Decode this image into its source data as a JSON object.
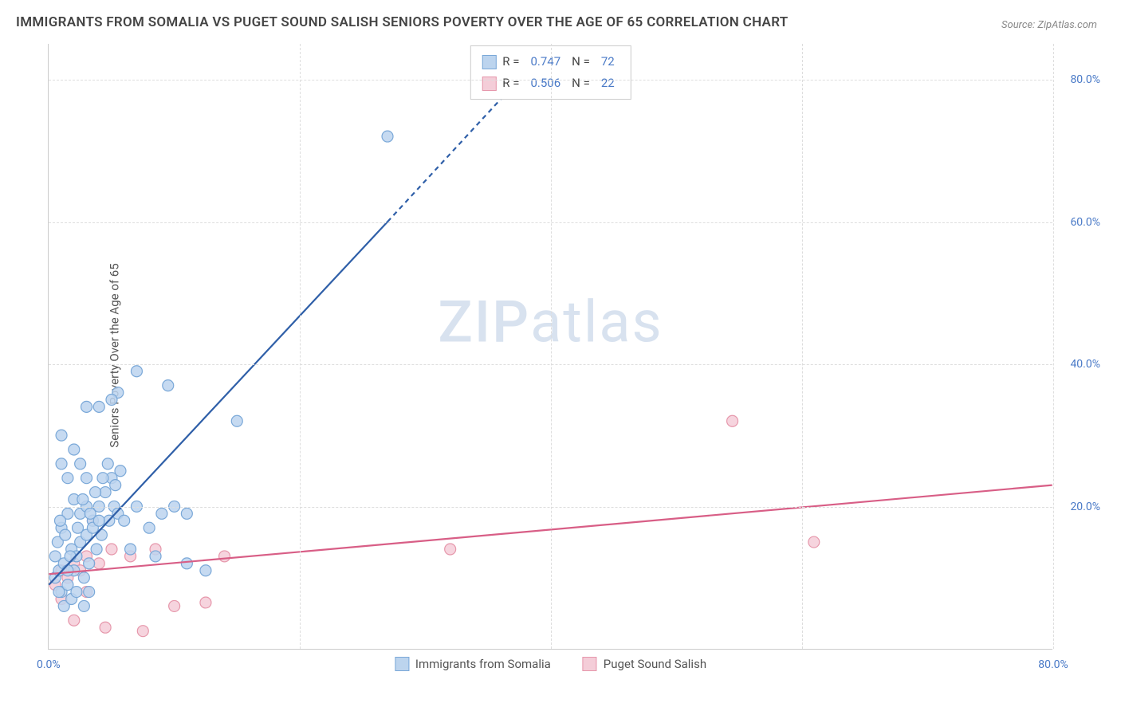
{
  "title": "IMMIGRANTS FROM SOMALIA VS PUGET SOUND SALISH SENIORS POVERTY OVER THE AGE OF 65 CORRELATION CHART",
  "source": "Source: ZipAtlas.com",
  "y_axis_label": "Seniors Poverty Over the Age of 65",
  "watermark": "ZIPatlas",
  "chart": {
    "type": "scatter",
    "xlim": [
      0,
      80
    ],
    "ylim": [
      0,
      85
    ],
    "x_ticks": [
      0,
      80
    ],
    "x_tick_labels": [
      "0.0%",
      "80.0%"
    ],
    "y_ticks": [
      20,
      40,
      60,
      80
    ],
    "y_tick_labels": [
      "20.0%",
      "40.0%",
      "60.0%",
      "80.0%"
    ],
    "grid_color": "#dddddd",
    "background_color": "#ffffff",
    "marker_radius": 7,
    "marker_stroke_width": 1.2,
    "trend_line_width": 2.2,
    "series": [
      {
        "name": "Immigrants from Somalia",
        "fill": "#bcd4ee",
        "stroke": "#7aa8d8",
        "line_color": "#2f5fa8",
        "r_value": "0.747",
        "n_value": "72",
        "trend": {
          "x1": 0,
          "y1": 9,
          "x2": 27,
          "y2": 60,
          "dash_x2": 38,
          "dash_y2": 81
        },
        "points": [
          [
            0.5,
            10
          ],
          [
            0.8,
            11
          ],
          [
            1.0,
            8
          ],
          [
            1.2,
            12
          ],
          [
            1.5,
            9
          ],
          [
            1.8,
            14
          ],
          [
            2.0,
            11
          ],
          [
            2.2,
            13
          ],
          [
            2.5,
            15
          ],
          [
            2.8,
            10
          ],
          [
            3.0,
            16
          ],
          [
            3.2,
            12
          ],
          [
            3.5,
            18
          ],
          [
            3.8,
            14
          ],
          [
            4.0,
            20
          ],
          [
            4.2,
            16
          ],
          [
            4.5,
            22
          ],
          [
            4.8,
            18
          ],
          [
            5.0,
            24
          ],
          [
            5.2,
            20
          ],
          [
            1.0,
            17
          ],
          [
            1.5,
            19
          ],
          [
            2.0,
            21
          ],
          [
            2.5,
            19
          ],
          [
            3.0,
            20
          ],
          [
            3.5,
            17
          ],
          [
            4.0,
            18
          ],
          [
            1.0,
            26
          ],
          [
            1.5,
            24
          ],
          [
            2.5,
            26
          ],
          [
            3.0,
            24
          ],
          [
            0.5,
            13
          ],
          [
            0.8,
            8
          ],
          [
            1.2,
            6
          ],
          [
            1.8,
            7
          ],
          [
            2.2,
            8
          ],
          [
            2.8,
            6
          ],
          [
            3.2,
            8
          ],
          [
            1.0,
            30
          ],
          [
            2.0,
            28
          ],
          [
            5.5,
            19
          ],
          [
            6.0,
            18
          ],
          [
            7.0,
            20
          ],
          [
            8.0,
            17
          ],
          [
            9.0,
            19
          ],
          [
            10.0,
            20
          ],
          [
            11.0,
            19
          ],
          [
            4.0,
            34
          ],
          [
            5.5,
            36
          ],
          [
            7.0,
            39
          ],
          [
            9.5,
            37
          ],
          [
            3.0,
            34
          ],
          [
            5.0,
            35
          ],
          [
            15.0,
            32
          ],
          [
            11.0,
            12
          ],
          [
            8.5,
            13
          ],
          [
            6.5,
            14
          ],
          [
            12.5,
            11
          ],
          [
            27.0,
            72
          ],
          [
            1.5,
            11
          ],
          [
            0.7,
            15
          ],
          [
            0.9,
            18
          ],
          [
            1.3,
            16
          ],
          [
            1.7,
            13
          ],
          [
            2.3,
            17
          ],
          [
            2.7,
            21
          ],
          [
            3.3,
            19
          ],
          [
            3.7,
            22
          ],
          [
            4.3,
            24
          ],
          [
            4.7,
            26
          ],
          [
            5.3,
            23
          ],
          [
            5.7,
            25
          ]
        ]
      },
      {
        "name": "Puget Sound Salish",
        "fill": "#f4cdd8",
        "stroke": "#e697ab",
        "line_color": "#d85e86",
        "r_value": "0.506",
        "n_value": "22",
        "trend": {
          "x1": 0,
          "y1": 10.5,
          "x2": 80,
          "y2": 23
        },
        "points": [
          [
            0.5,
            9
          ],
          [
            1.0,
            11
          ],
          [
            1.5,
            10
          ],
          [
            2.0,
            12
          ],
          [
            2.5,
            11
          ],
          [
            3.0,
            13
          ],
          [
            3.5,
            18
          ],
          [
            4.0,
            12
          ],
          [
            5.0,
            14
          ],
          [
            6.5,
            13
          ],
          [
            8.5,
            14
          ],
          [
            14.0,
            13
          ],
          [
            32.0,
            14
          ],
          [
            2.0,
            4
          ],
          [
            4.5,
            3
          ],
          [
            7.5,
            2.5
          ],
          [
            10.0,
            6
          ],
          [
            12.5,
            6.5
          ],
          [
            1.0,
            7
          ],
          [
            3.0,
            8
          ],
          [
            54.5,
            32
          ],
          [
            61.0,
            15
          ]
        ]
      }
    ]
  },
  "legend_bottom": {
    "items": [
      {
        "label": "Immigrants from Somalia",
        "fill": "#bcd4ee",
        "stroke": "#7aa8d8"
      },
      {
        "label": "Puget Sound Salish",
        "fill": "#f4cdd8",
        "stroke": "#e697ab"
      }
    ]
  }
}
